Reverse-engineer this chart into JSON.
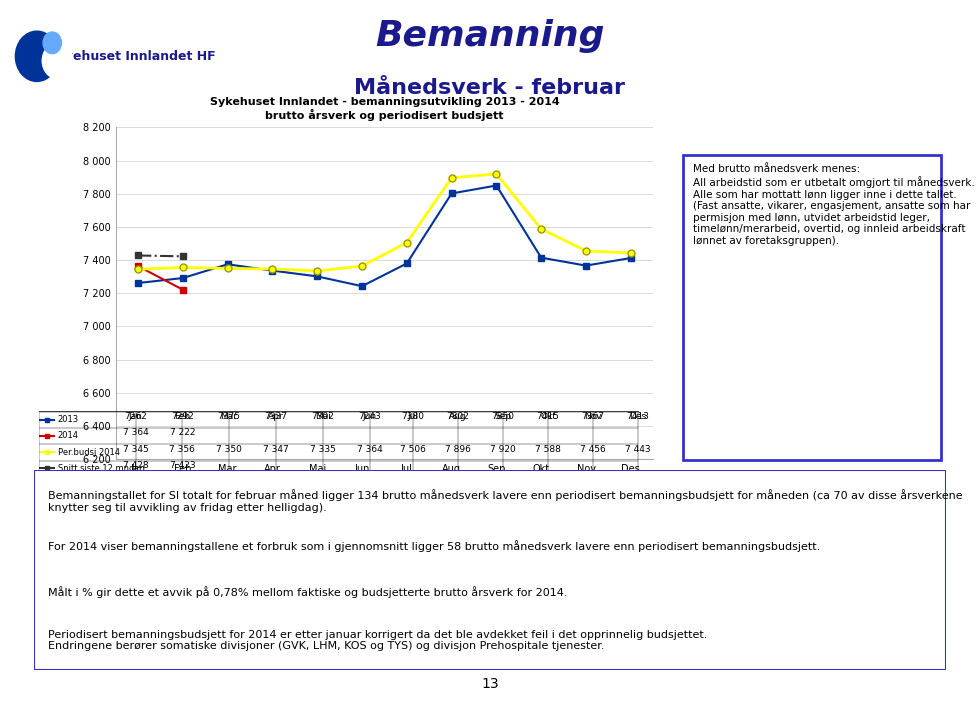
{
  "title_main": "Bemanning",
  "title_sub": "Månedsverk - februar",
  "chart_title_line1": "Sykehuset Innlandet - bemanningsutvikling 2013 - 2014",
  "chart_title_line2": "brutto årsverk og periodisert budsjett",
  "months": [
    "Jan",
    "Feb",
    "Mar",
    "Apr",
    "Mai",
    "Jun",
    "Jul",
    "Aug",
    "Sep",
    "Okt",
    "Nov",
    "Des"
  ],
  "series_2013": [
    7262,
    7292,
    7375,
    7337,
    7302,
    7243,
    7380,
    7802,
    7850,
    7415,
    7367,
    7413
  ],
  "series_2014": [
    7364,
    7222,
    null,
    null,
    null,
    null,
    null,
    null,
    null,
    null,
    null,
    null
  ],
  "series_budget": [
    7345,
    7356,
    7350,
    7347,
    7335,
    7364,
    7506,
    7896,
    7920,
    7588,
    7456,
    7443
  ],
  "series_snitt": [
    7428,
    7423,
    null,
    null,
    null,
    null,
    null,
    null,
    null,
    null,
    null,
    null
  ],
  "color_2013": "#003399",
  "color_2014": "#cc0000",
  "color_budget": "#ffff00",
  "color_snitt": "#333333",
  "ylim_min": 6200,
  "ylim_max": 8200,
  "yticks": [
    6200,
    6400,
    6600,
    6800,
    7000,
    7200,
    7400,
    7600,
    7800,
    8000,
    8200
  ],
  "legend_2013": "2013",
  "legend_2014": "2014",
  "legend_budget": "Per.budsj 2014",
  "legend_snitt": "Snitt siste 12 mndr",
  "info_box_text": "Med brutto månedsverk menes:\nAll arbeidstid som er utbetalt omgjort til månedsverk. Alle som har mottatt lønn ligger inne i dette tallet. (Fast ansatte, vikarer, engasjement, ansatte som har permisjon med lønn, utvidet arbeidstid leger, timelønn/merarbeid, overtid, og innleid arbeidskraft lønnet av foretaksgruppen).",
  "info_box_border_color": "#3333cc",
  "body_text_1": "Bemanningstallet for SI totalt for februar måned ligger 134 brutto månedsverk lavere enn periodisert bemanningsbudsjett for måneden (ca 70 av disse årsverkene knytter seg til avvikling av fridag etter helligdag).",
  "body_text_2": "For 2014 viser bemanningstallene et forbruk som i gjennomsnitt ligger 58 brutto månedsverk lavere enn periodisert bemanningsbudsjett.",
  "body_text_3": "Målt i % gir dette et avvik på 0,78% mellom faktiske og budsjetterte brutto årsverk for 2014.",
  "body_text_4": "Periodisert bemanningsbudsjett for 2014 er etter januar korrigert da det ble avdekket feil i det opprinnelig budsjettet.\nEndringene berører somatiske divisjoner (GVK, LHM, KOS og TYS) og divisjon Prehospitale tjenester.",
  "page_number": "13",
  "background_color": "#ffffff",
  "header_color": "#1a1a8c",
  "body_border_color": "#3333cc"
}
